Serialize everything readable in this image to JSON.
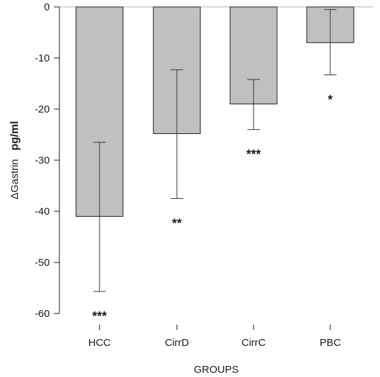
{
  "chart_data": {
    "type": "bar",
    "title": "",
    "xlabel": "GROUPS",
    "ylabel": "ΔGastrin",
    "ylabel_unit": "pg/ml",
    "categories": [
      "HCC",
      "CirrD",
      "CirrC",
      "PBC"
    ],
    "values": [
      -41,
      -24.8,
      -19,
      -7
    ],
    "error_low": [
      -55.7,
      -37.5,
      -24,
      -13.3
    ],
    "error_high": [
      -26.5,
      -12.3,
      -14.2,
      -0.5
    ],
    "significance": [
      "***",
      "**",
      "***",
      "*"
    ],
    "ylim": [
      -60,
      0
    ],
    "yticks": [
      0,
      -10,
      -20,
      -30,
      -40,
      -50,
      -60
    ],
    "ytick_labels": [
      "0",
      "-10",
      "-20",
      "-30",
      "-40",
      "-50",
      "-60"
    ],
    "grid": false,
    "bar_color": "#c0c0c0",
    "bar_edge_color": "#1a1a1a",
    "axis_color": "#1a1a1a",
    "zero_line_color": "#b0b0b0"
  }
}
